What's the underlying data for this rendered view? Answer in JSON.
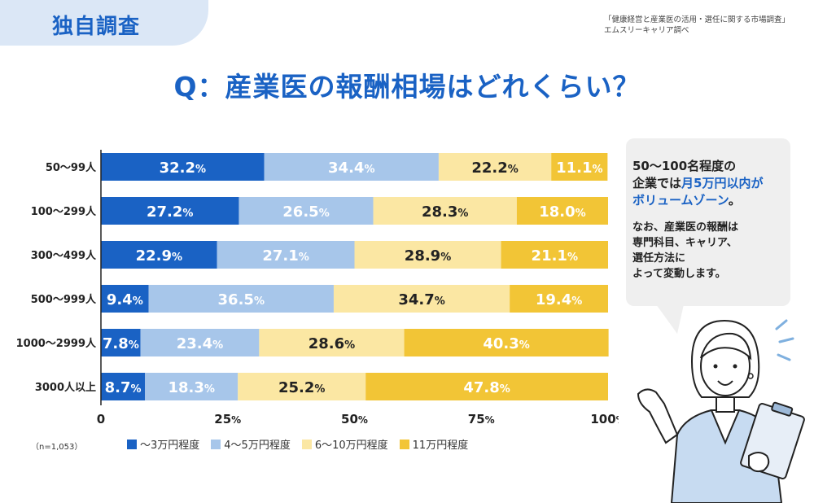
{
  "header": {
    "badge": "独自調査",
    "source_line1": "「健康経営と産業医の活用・選任に関する市場調査」",
    "source_line2": "エムスリーキャリア調べ"
  },
  "question": "Q：産業医の報酬相場はどれくらい？",
  "sample_note": "（n=1,053）",
  "callout": {
    "head_part1": "50〜100名程度の",
    "head_part2": "企業では",
    "head_highlight1": "月5万円以内が",
    "head_highlight2": "ボリュームゾーン",
    "head_end": "。",
    "body_line1": "なお、産業医の報酬は",
    "body_line2": "専門科目、キャリア、",
    "body_line3": "選任方法に",
    "body_line4": "よって変動します。"
  },
  "chart_data": {
    "type": "bar",
    "orientation": "horizontal",
    "stacked": true,
    "categories": [
      "50〜99人",
      "100〜299人",
      "300〜499人",
      "500〜999人",
      "1000〜2999人",
      "3000人以上"
    ],
    "series": [
      {
        "name": "〜3万円程度",
        "color": "#1a62c4",
        "label_color": "#ffffff",
        "values": [
          32.2,
          27.2,
          22.9,
          9.4,
          7.8,
          8.7
        ]
      },
      {
        "name": "4〜5万円程度",
        "color": "#a7c6ea",
        "label_color": "#ffffff",
        "values": [
          34.4,
          26.5,
          27.1,
          36.5,
          23.4,
          18.3
        ]
      },
      {
        "name": "6〜10万円程度",
        "color": "#fbe7a3",
        "label_color": "#222222",
        "values": [
          22.2,
          28.3,
          28.9,
          34.7,
          28.6,
          25.2
        ]
      },
      {
        "name": "11万円程度",
        "color": "#f2c536",
        "label_color": "#ffffff",
        "values": [
          11.1,
          18.0,
          21.1,
          19.4,
          40.3,
          47.8
        ]
      }
    ],
    "xlim": [
      0,
      100
    ],
    "x_ticks": [
      0,
      25,
      50,
      75,
      100
    ],
    "x_tick_suffix": "%",
    "value_suffix": "%",
    "legend_position": "bottom",
    "grid": false
  }
}
